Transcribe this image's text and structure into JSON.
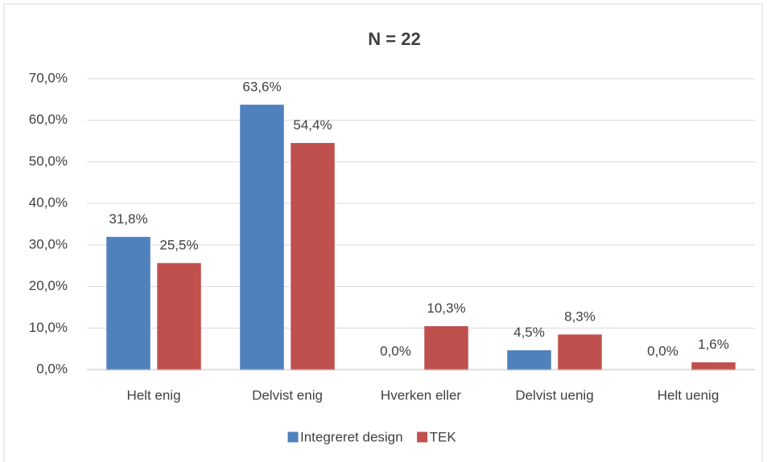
{
  "chart_data": {
    "type": "bar",
    "title": "N = 22",
    "categories": [
      "Helt enig",
      "Delvist enig",
      "Hverken eller",
      "Delvist uenig",
      "Helt uenig"
    ],
    "series": [
      {
        "name": "Integreret design",
        "color": "#4f81bd",
        "values": [
          31.8,
          63.6,
          0.0,
          4.5,
          0.0
        ],
        "value_labels": [
          "31,8%",
          "63,6%",
          "0,0%",
          "4,5%",
          "0,0%"
        ]
      },
      {
        "name": "TEK",
        "color": "#c0504d",
        "values": [
          25.5,
          54.4,
          10.3,
          8.3,
          1.6
        ],
        "value_labels": [
          "25,5%",
          "54,4%",
          "10,3%",
          "8,3%",
          "1,6%"
        ]
      }
    ],
    "ylim": [
      0,
      70
    ],
    "yticks": [
      {
        "value": 0,
        "label": "0,0%"
      },
      {
        "value": 10,
        "label": "10,0%"
      },
      {
        "value": 20,
        "label": "20,0%"
      },
      {
        "value": 30,
        "label": "30,0%"
      },
      {
        "value": 40,
        "label": "40,0%"
      },
      {
        "value": 50,
        "label": "50,0%"
      },
      {
        "value": 60,
        "label": "60,0%"
      },
      {
        "value": 70,
        "label": "70,0%"
      }
    ],
    "grid": true,
    "legend": "bottom"
  }
}
